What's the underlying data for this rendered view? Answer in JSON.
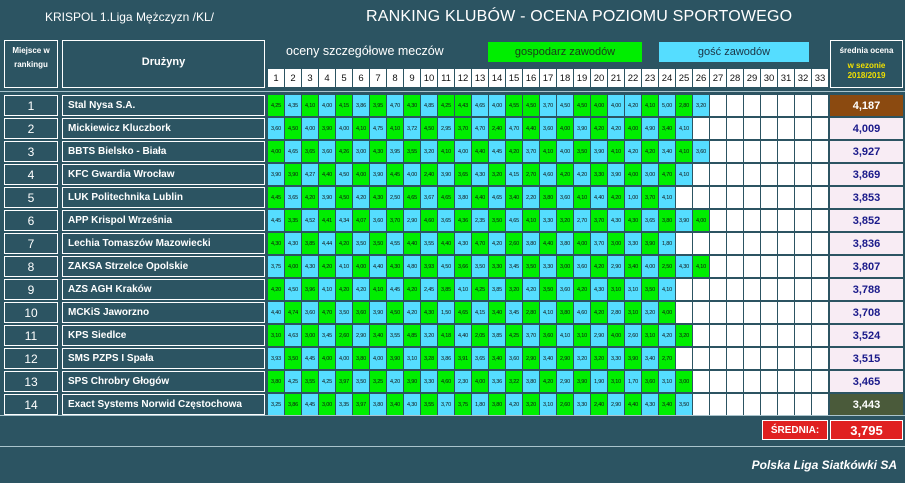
{
  "header": {
    "league": "KRISPOL 1.Liga Mężczyzn /KL/",
    "title": "RANKING KLUBÓW - OCENA POZIOMU SPORTOWEGO",
    "place_line1": "Miejsce w",
    "place_line2": "rankingu",
    "teams": "Drużyny",
    "ratings": "oceny szczegółowe meczów",
    "legend_home": "gospodarz zawodów",
    "legend_away": "gość zawodów",
    "avg_line1": "średnia ocena",
    "avg_line2": "w sezonie",
    "avg_line3": "2018/2019",
    "colors": {
      "home": "#00ee00",
      "away": "#55ddff",
      "empty": "#ffffff",
      "background": "#2c5462",
      "first": "#8b4a10",
      "last": "#4a5a3a"
    }
  },
  "columns": [
    "1",
    "2",
    "3",
    "4",
    "5",
    "6",
    "7",
    "8",
    "9",
    "10",
    "11",
    "12",
    "13",
    "14",
    "15",
    "16",
    "17",
    "18",
    "19",
    "20",
    "21",
    "22",
    "23",
    "24",
    "25",
    "26",
    "27",
    "28",
    "29",
    "30",
    "31",
    "32",
    "33"
  ],
  "rows": [
    {
      "rank": "1",
      "team": "Stal Nysa S.A.",
      "avg": "4,187",
      "pattern": "hahahahahahhaahhaahhaahahahhaaa",
      "scores": [
        "4,25",
        "4,35",
        "4,10",
        "4,00",
        "4,15",
        "3,86",
        "3,95",
        "4,70",
        "4,30",
        "4,85",
        "4,25",
        "4,43",
        "4,65",
        "4,00",
        "4,55",
        "4,50",
        "3,70",
        "4,50",
        "4,50",
        "4,00",
        "4,00",
        "4,20",
        "4,10",
        "5,00",
        "2,80",
        "3,20"
      ]
    },
    {
      "rank": "2",
      "team": "Mickiewicz Kluczbork",
      "avg": "4,009",
      "pattern": "ahahahahahahahahahahahahah",
      "scores": [
        "3,60",
        "4,50",
        "4,00",
        "3,90",
        "4,00",
        "4,10",
        "4,75",
        "4,10",
        "3,72",
        "4,50",
        "2,95",
        "3,70",
        "4,70",
        "2,40",
        "4,70",
        "4,40",
        "3,60",
        "4,00",
        "3,90",
        "4,20",
        "4,20",
        "4,00",
        "4,90",
        "3,40",
        "4,10"
      ]
    },
    {
      "rank": "3",
      "team": "BBTS Bielsko - Biała",
      "avg": "3,927",
      "pattern": "hahahahahahahahahahahahahah",
      "scores": [
        "4,00",
        "4,65",
        "3,65",
        "3,60",
        "4,26",
        "3,00",
        "4,30",
        "3,95",
        "3,55",
        "3,20",
        "4,10",
        "4,00",
        "4,40",
        "4,45",
        "4,20",
        "3,70",
        "4,10",
        "4,00",
        "3,50",
        "3,90",
        "4,10",
        "4,20",
        "4,20",
        "3,40",
        "4,10",
        "3,60"
      ]
    },
    {
      "rank": "4",
      "team": "KFC Gwardia Wrocław",
      "avg": "3,869",
      "pattern": "ahahahahahahahahahahahahah",
      "scores": [
        "3,90",
        "3,90",
        "4,27",
        "4,40",
        "4,50",
        "4,00",
        "3,90",
        "4,45",
        "4,00",
        "2,40",
        "3,90",
        "3,65",
        "4,30",
        "3,20",
        "4,15",
        "2,70",
        "4,60",
        "4,20",
        "4,20",
        "3,30",
        "3,90",
        "4,00",
        "3,00",
        "4,70",
        "4,10"
      ]
    },
    {
      "rank": "5",
      "team": "LUK Politechnika Lublin",
      "avg": "3,853",
      "pattern": "hahahahahahahahahahahahahah",
      "scores": [
        "4,45",
        "3,65",
        "4,20",
        "3,90",
        "4,50",
        "4,20",
        "4,30",
        "2,50",
        "4,65",
        "3,67",
        "4,65",
        "3,80",
        "4,40",
        "4,65",
        "3,40",
        "2,20",
        "3,80",
        "3,60",
        "4,10",
        "4,40",
        "4,20",
        "1,00",
        "3,70",
        "4,10"
      ]
    },
    {
      "rank": "6",
      "team": "APP Krispol Września",
      "avg": "3,852",
      "pattern": "ahahahahahahahahahahahahahh",
      "scores": [
        "4,45",
        "3,35",
        "4,52",
        "4,41",
        "4,34",
        "4,07",
        "3,60",
        "3,70",
        "2,90",
        "4,60",
        "3,65",
        "4,36",
        "2,35",
        "3,50",
        "4,65",
        "4,10",
        "3,30",
        "3,20",
        "2,70",
        "3,70",
        "4,30",
        "4,30",
        "3,65",
        "3,80",
        "3,90",
        "4,00"
      ]
    },
    {
      "rank": "7",
      "team": "Lechia Tomaszów Mazowiecki",
      "avg": "3,836",
      "pattern": "hahahahahahahahahahahahahah",
      "scores": [
        "4,30",
        "4,30",
        "3,85",
        "4,44",
        "4,20",
        "3,50",
        "3,50",
        "4,55",
        "4,40",
        "3,55",
        "4,40",
        "4,30",
        "4,70",
        "4,20",
        "2,60",
        "3,80",
        "4,40",
        "3,80",
        "4,00",
        "3,70",
        "3,00",
        "3,30",
        "3,90",
        "1,80"
      ]
    },
    {
      "rank": "8",
      "team": "ZAKSA Strzelce Opolskie",
      "avg": "3,807",
      "pattern": "ahahahahahahahahahahahahaha",
      "scores": [
        "3,75",
        "4,00",
        "4,30",
        "4,20",
        "4,10",
        "4,00",
        "4,40",
        "4,30",
        "4,80",
        "3,93",
        "4,50",
        "3,66",
        "3,50",
        "3,30",
        "3,45",
        "3,50",
        "3,30",
        "3,00",
        "3,60",
        "4,20",
        "2,90",
        "3,40",
        "4,00",
        "2,50",
        "4,30",
        "4,10"
      ]
    },
    {
      "rank": "9",
      "team": "AZS AGH Kraków",
      "avg": "3,788",
      "pattern": "hahahahahahahahahahahahahah",
      "scores": [
        "4,20",
        "4,50",
        "3,96",
        "4,10",
        "4,20",
        "4,20",
        "4,10",
        "4,45",
        "4,20",
        "2,45",
        "3,85",
        "4,10",
        "4,25",
        "3,85",
        "3,20",
        "4,20",
        "3,50",
        "3,60",
        "4,20",
        "4,30",
        "3,10",
        "3,10",
        "3,50",
        "4,10"
      ]
    },
    {
      "rank": "10",
      "team": "MCKiS Jaworzno",
      "avg": "3,708",
      "pattern": "ahahahahahahahahahahahahah",
      "scores": [
        "4,40",
        "4,74",
        "3,60",
        "4,70",
        "3,50",
        "3,60",
        "3,90",
        "4,50",
        "4,20",
        "4,30",
        "1,50",
        "4,65",
        "4,15",
        "3,40",
        "3,45",
        "2,80",
        "4,10",
        "3,80",
        "4,60",
        "4,20",
        "2,80",
        "3,10",
        "3,20",
        "4,00"
      ]
    },
    {
      "rank": "11",
      "team": "KPS Siedlce",
      "avg": "3,524",
      "pattern": "hahahahahahahahahahahahahah",
      "scores": [
        "3,10",
        "4,63",
        "3,00",
        "3,45",
        "2,60",
        "2,90",
        "3,40",
        "3,55",
        "4,85",
        "3,20",
        "4,18",
        "4,40",
        "2,05",
        "3,85",
        "4,25",
        "3,70",
        "3,60",
        "4,10",
        "3,10",
        "2,90",
        "4,00",
        "2,60",
        "3,10",
        "4,20",
        "3,20"
      ]
    },
    {
      "rank": "12",
      "team": "SMS PZPS I Spała",
      "avg": "3,515",
      "pattern": "ahahahahahahahahahahahahah",
      "scores": [
        "3,93",
        "3,50",
        "4,45",
        "4,00",
        "4,00",
        "3,80",
        "4,00",
        "3,90",
        "3,10",
        "3,28",
        "3,86",
        "3,91",
        "3,65",
        "3,40",
        "3,60",
        "2,90",
        "3,40",
        "2,90",
        "3,20",
        "3,20",
        "3,30",
        "3,90",
        "3,40",
        "2,70"
      ]
    },
    {
      "rank": "13",
      "team": "SPS Chrobry Głogów",
      "avg": "3,465",
      "pattern": "hahahahahahahahahahahahahah",
      "scores": [
        "3,80",
        "4,25",
        "3,55",
        "4,25",
        "3,97",
        "3,50",
        "3,25",
        "4,20",
        "3,90",
        "3,30",
        "4,60",
        "2,30",
        "4,00",
        "3,36",
        "3,22",
        "3,80",
        "4,20",
        "2,90",
        "3,90",
        "1,90",
        "3,10",
        "1,70",
        "3,60",
        "3,10",
        "3,00"
      ]
    },
    {
      "rank": "14",
      "team": "Exact Systems Norwid Częstochowa",
      "avg": "3,443",
      "pattern": "ahahahahahahahahahahahahah",
      "scores": [
        "3,25",
        "3,86",
        "4,45",
        "3,00",
        "3,35",
        "3,97",
        "3,80",
        "3,40",
        "4,30",
        "3,55",
        "3,70",
        "3,75",
        "1,80",
        "3,80",
        "4,20",
        "3,20",
        "3,10",
        "2,60",
        "3,30",
        "2,40",
        "2,90",
        "4,40",
        "4,30",
        "3,40",
        "3,50"
      ]
    }
  ],
  "summary": {
    "label": "ŚREDNIA:",
    "value": "3,795"
  },
  "footer": "Polska Liga Siatkówki SA"
}
